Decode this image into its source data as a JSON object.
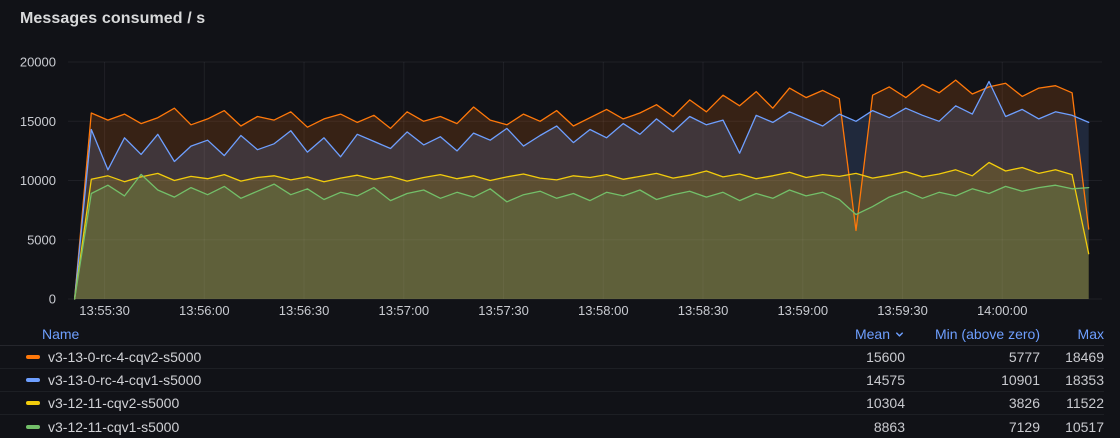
{
  "panel": {
    "title": "Messages consumed / s"
  },
  "colors": {
    "background": "#111217",
    "grid": "rgba(204,204,220,0.08)",
    "axis_text": "#c9cbd1",
    "link_blue": "#6E9FFF",
    "series_orange": "#FF780A",
    "series_blue": "#6E9FFF",
    "series_yellow": "#F2CC0C",
    "series_green": "#73BF69"
  },
  "chart_data": {
    "type": "area",
    "title": "Messages consumed / s",
    "grid": true,
    "legend_position": "bottom-table",
    "ylim": [
      0,
      20000
    ],
    "y_ticks": [
      0,
      5000,
      10000,
      15000,
      20000
    ],
    "x_ticks": [
      "13:55:30",
      "13:56:00",
      "13:56:30",
      "13:57:00",
      "13:57:30",
      "13:58:00",
      "13:58:30",
      "13:59:00",
      "13:59:30",
      "14:00:00"
    ],
    "axis_domain": [
      "13:55:19",
      "14:00:30"
    ],
    "x_start": "13:55:21",
    "x_interval_s": 5,
    "fill_opacity": 0.16,
    "series": [
      {
        "name": "v3-13-0-rc-4-cqv2-s5000",
        "color": "#FF780A",
        "values": [
          0,
          15700,
          15100,
          15600,
          14800,
          15300,
          16100,
          14700,
          15200,
          15900,
          14600,
          15400,
          15100,
          15800,
          14500,
          15200,
          15600,
          14900,
          15500,
          14400,
          15800,
          15000,
          15400,
          14800,
          16200,
          15100,
          14700,
          15600,
          15000,
          15900,
          14600,
          15300,
          16000,
          15200,
          15700,
          16400,
          15400,
          16800,
          15800,
          17200,
          16300,
          17500,
          16100,
          17800,
          17000,
          17600,
          16900,
          5777,
          17200,
          17900,
          17000,
          18100,
          17400,
          18469,
          17300,
          17900,
          18200,
          17100,
          17800,
          18000,
          17400,
          5900
        ]
      },
      {
        "name": "v3-13-0-rc-4-cqv1-s5000",
        "color": "#6E9FFF",
        "values": [
          0,
          14300,
          10901,
          13600,
          12200,
          13900,
          11600,
          12900,
          13400,
          12100,
          13800,
          12600,
          13100,
          14200,
          12400,
          13600,
          12000,
          13900,
          13300,
          12700,
          14100,
          13000,
          13700,
          12500,
          14000,
          13400,
          14400,
          12900,
          13800,
          14600,
          13200,
          14300,
          13600,
          14800,
          13900,
          15200,
          14100,
          15400,
          14700,
          15100,
          12300,
          15500,
          14900,
          15800,
          15200,
          14600,
          15600,
          15000,
          15900,
          15300,
          16100,
          15500,
          15000,
          16300,
          15600,
          18353,
          15400,
          16000,
          15200,
          15800,
          15500,
          14900
        ]
      },
      {
        "name": "v3-12-11-cqv2-s5000",
        "color": "#F2CC0C",
        "values": [
          0,
          10100,
          10400,
          9900,
          10300,
          10600,
          10000,
          10350,
          10150,
          10500,
          9950,
          10250,
          10400,
          10050,
          10300,
          9900,
          10200,
          10450,
          10100,
          10350,
          9950,
          10250,
          10500,
          10150,
          10400,
          10000,
          10300,
          10550,
          10200,
          10050,
          10400,
          10250,
          10500,
          10100,
          10350,
          10600,
          10200,
          10450,
          10800,
          10300,
          10550,
          10150,
          10400,
          10700,
          10250,
          10500,
          10350,
          10600,
          10200,
          10450,
          10750,
          10300,
          10550,
          10900,
          10400,
          11522,
          10800,
          11100,
          10600,
          10900,
          10500,
          3826
        ]
      },
      {
        "name": "v3-12-11-cqv1-s5000",
        "color": "#73BF69",
        "values": [
          0,
          8900,
          9600,
          8700,
          10517,
          9200,
          8600,
          9400,
          8800,
          9500,
          8500,
          9100,
          9700,
          8800,
          9300,
          8400,
          9000,
          8700,
          9400,
          8300,
          8900,
          9200,
          8500,
          9000,
          8600,
          9300,
          8200,
          8800,
          9100,
          8500,
          8900,
          8300,
          9000,
          8700,
          9200,
          8400,
          8800,
          9100,
          8600,
          9000,
          8300,
          8900,
          8500,
          9200,
          8700,
          9000,
          8400,
          7129,
          7800,
          8600,
          9100,
          8500,
          9000,
          8700,
          9300,
          8900,
          9500,
          9100,
          9400,
          9600,
          9300,
          9400
        ]
      }
    ]
  },
  "legend": {
    "columns": {
      "name": "Name",
      "mean": "Mean",
      "min": "Min (above zero)",
      "max": "Max"
    },
    "sort": {
      "column": "Mean",
      "direction": "desc"
    },
    "rows": [
      {
        "name": "v3-13-0-rc-4-cqv2-s5000",
        "color": "#FF780A",
        "mean": 15600,
        "min": 5777,
        "max": 18469
      },
      {
        "name": "v3-13-0-rc-4-cqv1-s5000",
        "color": "#6E9FFF",
        "mean": 14575,
        "min": 10901,
        "max": 18353
      },
      {
        "name": "v3-12-11-cqv2-s5000",
        "color": "#F2CC0C",
        "mean": 10304,
        "min": 3826,
        "max": 11522
      },
      {
        "name": "v3-12-11-cqv1-s5000",
        "color": "#73BF69",
        "mean": 8863,
        "min": 7129,
        "max": 10517
      }
    ]
  }
}
